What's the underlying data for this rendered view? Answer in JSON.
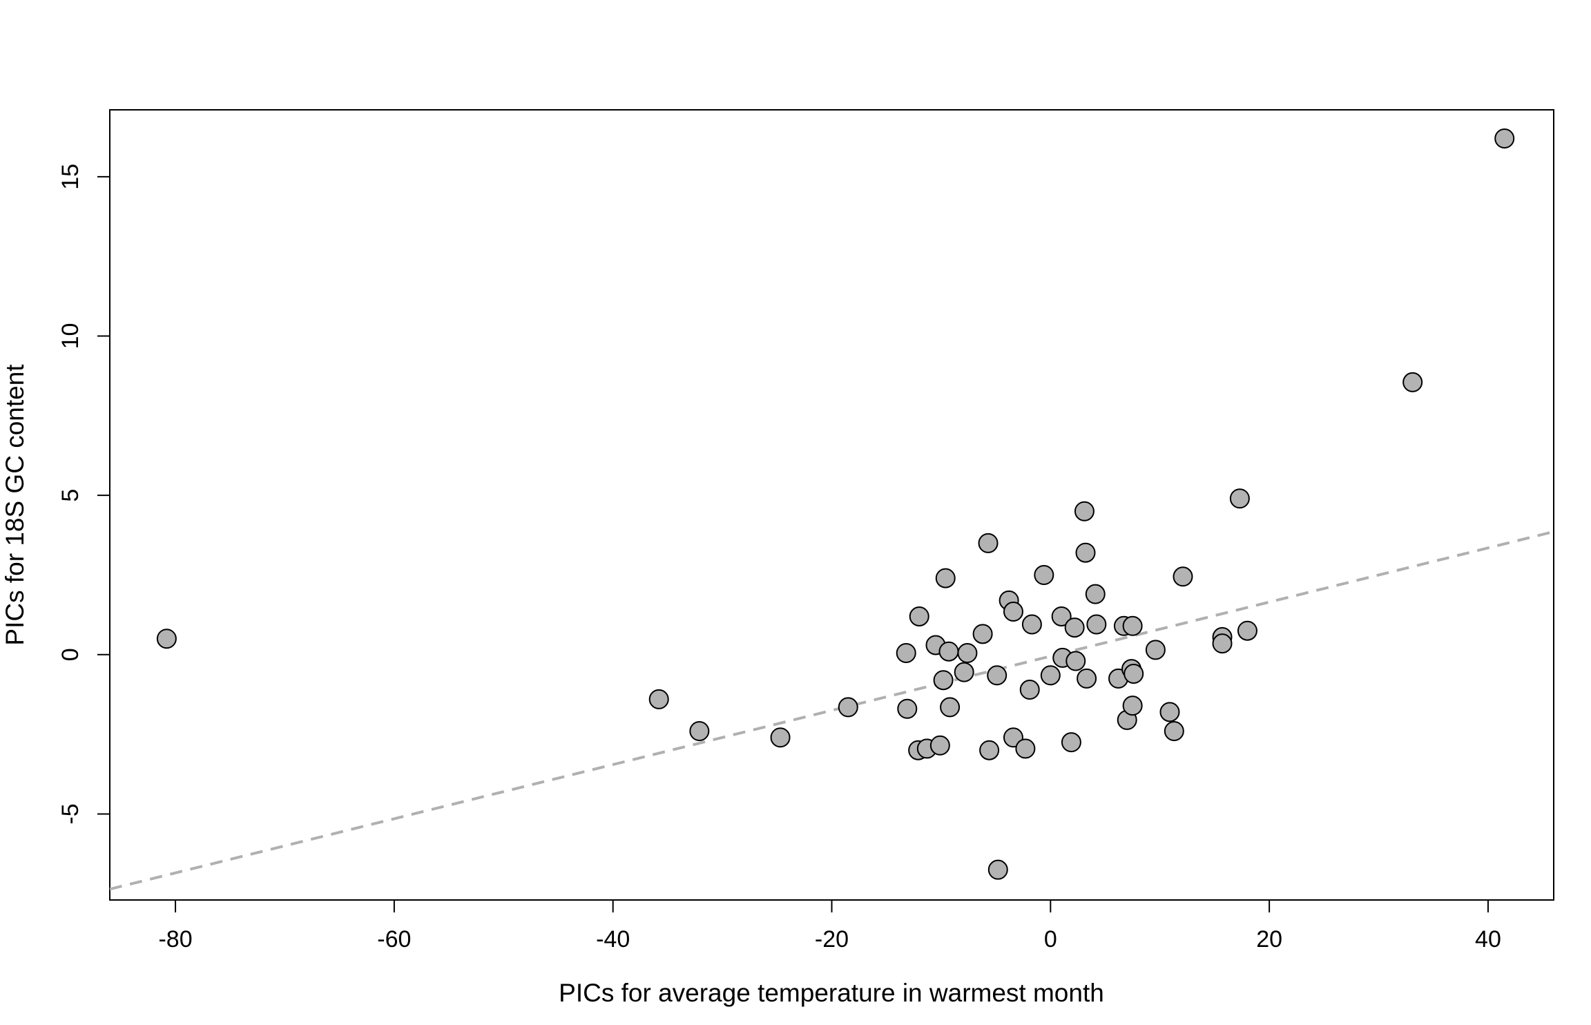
{
  "chart_data": {
    "type": "scatter",
    "title": "",
    "xlabel": "PICs for average temperature in warmest month",
    "ylabel": "PICs for 18S GC content",
    "xlim": [
      -86,
      46
    ],
    "ylim": [
      -7.7,
      17.1
    ],
    "x_ticks": [
      -80,
      -60,
      -40,
      -20,
      0,
      20,
      40
    ],
    "y_ticks": [
      -5,
      0,
      5,
      10,
      15
    ],
    "x_tick_labels": [
      "-80",
      "-60",
      "-40",
      "-20",
      "0",
      "20",
      "40"
    ],
    "y_tick_labels": [
      "-5",
      "0",
      "5",
      "10",
      "15"
    ],
    "grid": false,
    "legend": "none",
    "point_color": "#b3b3b3",
    "point_edge_color": "#000000",
    "fit_line": {
      "style": "dashed",
      "color": "#b0b0b0",
      "intercept": -0.05,
      "slope": 0.085
    },
    "points": [
      {
        "x": -80.8,
        "y": 0.5
      },
      {
        "x": -35.8,
        "y": -1.4
      },
      {
        "x": -32.1,
        "y": -2.4
      },
      {
        "x": -24.7,
        "y": -2.6
      },
      {
        "x": -18.5,
        "y": -1.65
      },
      {
        "x": -13.2,
        "y": 0.05
      },
      {
        "x": -13.1,
        "y": -1.7
      },
      {
        "x": -12.0,
        "y": 1.2
      },
      {
        "x": -12.1,
        "y": -3.0
      },
      {
        "x": -11.3,
        "y": -2.95
      },
      {
        "x": -10.5,
        "y": 0.3
      },
      {
        "x": -10.1,
        "y": -2.85
      },
      {
        "x": -9.8,
        "y": -0.8
      },
      {
        "x": -9.6,
        "y": 2.4
      },
      {
        "x": -9.3,
        "y": 0.1
      },
      {
        "x": -9.2,
        "y": -1.65
      },
      {
        "x": -7.9,
        "y": -0.55
      },
      {
        "x": -7.6,
        "y": 0.05
      },
      {
        "x": -6.2,
        "y": 0.65
      },
      {
        "x": -5.7,
        "y": 3.5
      },
      {
        "x": -5.6,
        "y": -3.0
      },
      {
        "x": -4.9,
        "y": -0.65
      },
      {
        "x": -4.8,
        "y": -6.75
      },
      {
        "x": -3.8,
        "y": 1.7
      },
      {
        "x": -3.4,
        "y": 1.35
      },
      {
        "x": -3.4,
        "y": -2.6
      },
      {
        "x": -2.3,
        "y": -2.95
      },
      {
        "x": -1.9,
        "y": -1.1
      },
      {
        "x": -1.7,
        "y": 0.95
      },
      {
        "x": -0.6,
        "y": 2.5
      },
      {
        "x": 0.0,
        "y": -0.65
      },
      {
        "x": 1.0,
        "y": 1.2
      },
      {
        "x": 1.1,
        "y": -0.1
      },
      {
        "x": 1.9,
        "y": -2.75
      },
      {
        "x": 2.2,
        "y": 0.85
      },
      {
        "x": 2.3,
        "y": -0.2
      },
      {
        "x": 3.1,
        "y": 4.5
      },
      {
        "x": 3.2,
        "y": 3.2
      },
      {
        "x": 3.3,
        "y": -0.75
      },
      {
        "x": 4.1,
        "y": 1.9
      },
      {
        "x": 4.2,
        "y": 0.95
      },
      {
        "x": 6.2,
        "y": -0.75
      },
      {
        "x": 6.7,
        "y": 0.9
      },
      {
        "x": 7.0,
        "y": -2.05
      },
      {
        "x": 7.4,
        "y": -0.45
      },
      {
        "x": 7.5,
        "y": -1.6
      },
      {
        "x": 7.5,
        "y": 0.9
      },
      {
        "x": 7.6,
        "y": -0.6
      },
      {
        "x": 9.6,
        "y": 0.15
      },
      {
        "x": 10.9,
        "y": -1.8
      },
      {
        "x": 11.3,
        "y": -2.4
      },
      {
        "x": 12.1,
        "y": 2.45
      },
      {
        "x": 15.7,
        "y": 0.55
      },
      {
        "x": 15.7,
        "y": 0.35
      },
      {
        "x": 17.3,
        "y": 4.9
      },
      {
        "x": 18.0,
        "y": 0.75
      },
      {
        "x": 33.1,
        "y": 8.55
      },
      {
        "x": 41.5,
        "y": 16.2
      }
    ]
  }
}
